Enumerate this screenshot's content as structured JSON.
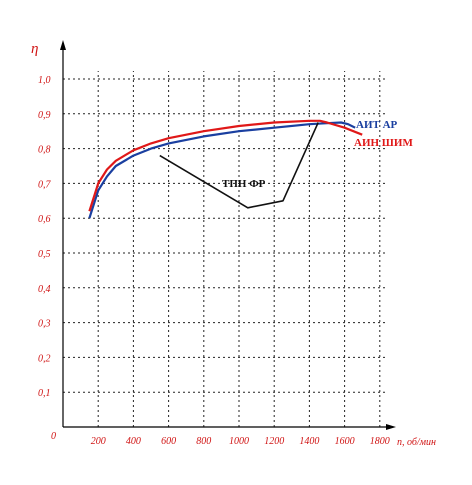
{
  "chart_data": {
    "type": "line",
    "ylabel": "η",
    "xlabel": "n, об/мин",
    "origin_label": "0",
    "xlim": [
      0,
      1900
    ],
    "ylim": [
      0,
      1.1
    ],
    "x_ticks": [
      200,
      400,
      600,
      800,
      1000,
      1200,
      1400,
      1600,
      1800
    ],
    "y_ticks": [
      0.1,
      0.2,
      0.3,
      0.4,
      0.5,
      0.6,
      0.7,
      0.8,
      0.9,
      1.0
    ],
    "x_tick_labels": [
      "200",
      "400",
      "600",
      "800",
      "1000",
      "1200",
      "1400",
      "1600",
      "1800"
    ],
    "y_tick_labels": [
      "0,1",
      "0,2",
      "0,3",
      "0,4",
      "0,5",
      "0,6",
      "0,7",
      "0,8",
      "0,9",
      "1,0"
    ],
    "grid": true,
    "series": [
      {
        "name": "АИТ АР",
        "color": "#1a3fa0",
        "x": [
          150,
          200,
          250,
          300,
          400,
          500,
          600,
          800,
          1000,
          1200,
          1400,
          1500,
          1580,
          1620,
          1660
        ],
        "y": [
          0.6,
          0.68,
          0.72,
          0.75,
          0.78,
          0.8,
          0.815,
          0.835,
          0.85,
          0.86,
          0.87,
          0.873,
          0.875,
          0.87,
          0.86
        ]
      },
      {
        "name": "АИН ШИМ",
        "color": "#e01818",
        "x": [
          150,
          200,
          250,
          300,
          400,
          500,
          600,
          800,
          1000,
          1200,
          1400,
          1460,
          1500,
          1600,
          1700
        ],
        "y": [
          0.62,
          0.7,
          0.74,
          0.765,
          0.795,
          0.815,
          0.83,
          0.85,
          0.865,
          0.875,
          0.88,
          0.88,
          0.875,
          0.86,
          0.84
        ]
      },
      {
        "name": "ТПН ФР",
        "color": "#111111",
        "x": [
          550,
          1050,
          1250,
          1450
        ],
        "y": [
          0.78,
          0.63,
          0.65,
          0.875
        ]
      }
    ]
  }
}
